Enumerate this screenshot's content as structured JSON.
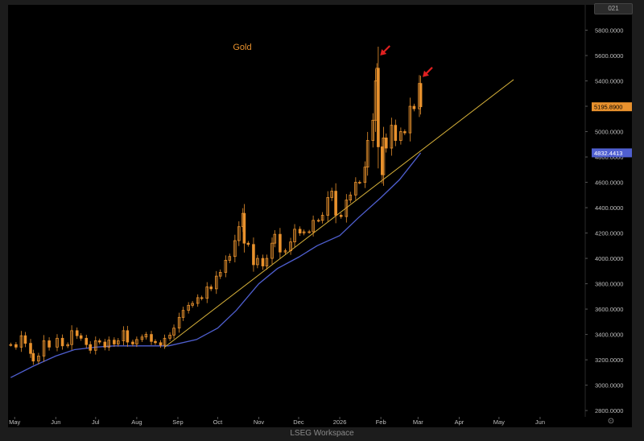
{
  "corner_label": "021",
  "settings_glyph": "⊙",
  "footer": "LSEG Workspace",
  "colors": {
    "background": "#000000",
    "frame": "#1c1c1c",
    "candle": "#e8912d",
    "moving_average": "#4f5fd0",
    "trendline": "#d8b23a",
    "arrow": "#e02020",
    "axis_text": "#bfbfbf",
    "price_label_bg": "#e8912d",
    "ma_label_bg": "#4f5fd0"
  },
  "chart_data": {
    "type": "line",
    "title": "Gold",
    "xlabel": "",
    "ylabel": "",
    "ylim": [
      2750,
      6000
    ],
    "y_ticks": [
      {
        "value": 2800,
        "label": "2800.0000"
      },
      {
        "value": 3000,
        "label": "3000.0000"
      },
      {
        "value": 3200,
        "label": "3200.0000"
      },
      {
        "value": 3400,
        "label": "3400.0000"
      },
      {
        "value": 3600,
        "label": "3600.0000"
      },
      {
        "value": 3800,
        "label": "3800.0000"
      },
      {
        "value": 4000,
        "label": "4000.0000"
      },
      {
        "value": 4200,
        "label": "4200.0000"
      },
      {
        "value": 4400,
        "label": "4400.0000"
      },
      {
        "value": 4600,
        "label": "4600.0000"
      },
      {
        "value": 4800,
        "label": "4800.0000"
      },
      {
        "value": 5000,
        "label": "5000.0000"
      },
      {
        "value": 5200,
        "label": "5200.0000"
      },
      {
        "value": 5400,
        "label": "5400.0000"
      },
      {
        "value": 5600,
        "label": "5600.0000"
      },
      {
        "value": 5800,
        "label": "5800.0000"
      }
    ],
    "x_ticks": [
      {
        "date": "2025-05-01",
        "label": "May"
      },
      {
        "date": "2025-06-01",
        "label": "Jun"
      },
      {
        "date": "2025-07-01",
        "label": "Jul"
      },
      {
        "date": "2025-08-01",
        "label": "Aug"
      },
      {
        "date": "2025-09-01",
        "label": "Sep"
      },
      {
        "date": "2025-10-01",
        "label": "Oct"
      },
      {
        "date": "2025-11-01",
        "label": "Nov"
      },
      {
        "date": "2025-12-01",
        "label": "Dec"
      },
      {
        "date": "2026-01-01",
        "label": "2026"
      },
      {
        "date": "2026-02-01",
        "label": "Feb"
      },
      {
        "date": "2026-03-01",
        "label": "Mar"
      },
      {
        "date": "2026-04-01",
        "label": "Apr"
      },
      {
        "date": "2026-05-01",
        "label": "May"
      },
      {
        "date": "2026-06-01",
        "label": "Jun"
      }
    ],
    "x_range": [
      "2025-04-26",
      "2026-07-05"
    ],
    "grid": false,
    "series": [
      {
        "role": "price",
        "style": "candlestick",
        "points": [
          {
            "date": "2025-04-28",
            "close": 3320
          },
          {
            "date": "2025-05-02",
            "close": 3300
          },
          {
            "date": "2025-05-06",
            "close": 3390
          },
          {
            "date": "2025-05-09",
            "close": 3330
          },
          {
            "date": "2025-05-13",
            "close": 3250
          },
          {
            "date": "2025-05-15",
            "close": 3190
          },
          {
            "date": "2025-05-19",
            "close": 3230
          },
          {
            "date": "2025-05-23",
            "close": 3350
          },
          {
            "date": "2025-05-27",
            "close": 3300
          },
          {
            "date": "2025-06-02",
            "close": 3370
          },
          {
            "date": "2025-06-06",
            "close": 3310
          },
          {
            "date": "2025-06-10",
            "close": 3320
          },
          {
            "date": "2025-06-13",
            "close": 3430
          },
          {
            "date": "2025-06-17",
            "close": 3390
          },
          {
            "date": "2025-06-20",
            "close": 3370
          },
          {
            "date": "2025-06-24",
            "close": 3320
          },
          {
            "date": "2025-06-27",
            "close": 3275
          },
          {
            "date": "2025-07-01",
            "close": 3350
          },
          {
            "date": "2025-07-04",
            "close": 3340
          },
          {
            "date": "2025-07-08",
            "close": 3300
          },
          {
            "date": "2025-07-11",
            "close": 3355
          },
          {
            "date": "2025-07-15",
            "close": 3325
          },
          {
            "date": "2025-07-18",
            "close": 3350
          },
          {
            "date": "2025-07-22",
            "close": 3430
          },
          {
            "date": "2025-07-25",
            "close": 3340
          },
          {
            "date": "2025-07-29",
            "close": 3325
          },
          {
            "date": "2025-08-01",
            "close": 3360
          },
          {
            "date": "2025-08-05",
            "close": 3380
          },
          {
            "date": "2025-08-08",
            "close": 3400
          },
          {
            "date": "2025-08-12",
            "close": 3345
          },
          {
            "date": "2025-08-15",
            "close": 3335
          },
          {
            "date": "2025-08-19",
            "close": 3315
          },
          {
            "date": "2025-08-22",
            "close": 3370
          },
          {
            "date": "2025-08-26",
            "close": 3395
          },
          {
            "date": "2025-08-29",
            "close": 3450
          },
          {
            "date": "2025-09-02",
            "close": 3535
          },
          {
            "date": "2025-09-05",
            "close": 3590
          },
          {
            "date": "2025-09-09",
            "close": 3630
          },
          {
            "date": "2025-09-12",
            "close": 3645
          },
          {
            "date": "2025-09-16",
            "close": 3690
          },
          {
            "date": "2025-09-19",
            "close": 3685
          },
          {
            "date": "2025-09-23",
            "close": 3775
          },
          {
            "date": "2025-09-26",
            "close": 3760
          },
          {
            "date": "2025-09-30",
            "close": 3860
          },
          {
            "date": "2025-10-03",
            "close": 3890
          },
          {
            "date": "2025-10-07",
            "close": 3985
          },
          {
            "date": "2025-10-10",
            "close": 4015
          },
          {
            "date": "2025-10-14",
            "close": 4140
          },
          {
            "date": "2025-10-17",
            "close": 4250
          },
          {
            "date": "2025-10-20",
            "close": 4355
          },
          {
            "date": "2025-10-21",
            "close": 4120
          },
          {
            "date": "2025-10-24",
            "close": 4110
          },
          {
            "date": "2025-10-28",
            "close": 3950
          },
          {
            "date": "2025-10-31",
            "close": 4000
          },
          {
            "date": "2025-11-04",
            "close": 3940
          },
          {
            "date": "2025-11-07",
            "close": 4000
          },
          {
            "date": "2025-11-11",
            "close": 4120
          },
          {
            "date": "2025-11-13",
            "close": 4190
          },
          {
            "date": "2025-11-17",
            "close": 4050
          },
          {
            "date": "2025-11-21",
            "close": 4060
          },
          {
            "date": "2025-11-25",
            "close": 4130
          },
          {
            "date": "2025-11-28",
            "close": 4230
          },
          {
            "date": "2025-12-02",
            "close": 4200
          },
          {
            "date": "2025-12-05",
            "close": 4210
          },
          {
            "date": "2025-12-09",
            "close": 4210
          },
          {
            "date": "2025-12-12",
            "close": 4300
          },
          {
            "date": "2025-12-16",
            "close": 4300
          },
          {
            "date": "2025-12-19",
            "close": 4340
          },
          {
            "date": "2025-12-23",
            "close": 4480
          },
          {
            "date": "2025-12-26",
            "close": 4530
          },
          {
            "date": "2025-12-29",
            "close": 4340
          },
          {
            "date": "2026-01-02",
            "close": 4330
          },
          {
            "date": "2026-01-06",
            "close": 4460
          },
          {
            "date": "2026-01-09",
            "close": 4500
          },
          {
            "date": "2026-01-13",
            "close": 4600
          },
          {
            "date": "2026-01-16",
            "close": 4600
          },
          {
            "date": "2026-01-20",
            "close": 4720
          },
          {
            "date": "2026-01-22",
            "close": 4930
          },
          {
            "date": "2026-01-26",
            "close": 5090
          },
          {
            "date": "2026-01-28",
            "close": 5400
          },
          {
            "date": "2026-01-29",
            "close": 5500
          },
          {
            "date": "2026-01-30",
            "close": 4880
          },
          {
            "date": "2026-02-02",
            "close": 4660
          },
          {
            "date": "2026-02-03",
            "close": 4950
          },
          {
            "date": "2026-02-05",
            "close": 4870
          },
          {
            "date": "2026-02-09",
            "close": 5050
          },
          {
            "date": "2026-02-12",
            "close": 4930
          },
          {
            "date": "2026-02-16",
            "close": 5000
          },
          {
            "date": "2026-02-19",
            "close": 4990
          },
          {
            "date": "2026-02-23",
            "close": 5200
          },
          {
            "date": "2026-02-26",
            "close": 5180
          },
          {
            "date": "2026-03-02",
            "close": 5380
          },
          {
            "date": "2026-03-03",
            "close": 5196
          }
        ]
      },
      {
        "role": "moving-average",
        "style": "line",
        "points": [
          {
            "date": "2025-04-28",
            "value": 3060
          },
          {
            "date": "2025-05-15",
            "value": 3150
          },
          {
            "date": "2025-06-01",
            "value": 3230
          },
          {
            "date": "2025-06-15",
            "value": 3280
          },
          {
            "date": "2025-07-01",
            "value": 3300
          },
          {
            "date": "2025-07-15",
            "value": 3310
          },
          {
            "date": "2025-08-01",
            "value": 3310
          },
          {
            "date": "2025-08-25",
            "value": 3310
          },
          {
            "date": "2025-09-15",
            "value": 3360
          },
          {
            "date": "2025-10-01",
            "value": 3450
          },
          {
            "date": "2025-10-15",
            "value": 3590
          },
          {
            "date": "2025-11-01",
            "value": 3800
          },
          {
            "date": "2025-11-15",
            "value": 3920
          },
          {
            "date": "2025-12-01",
            "value": 4010
          },
          {
            "date": "2025-12-15",
            "value": 4100
          },
          {
            "date": "2026-01-01",
            "value": 4180
          },
          {
            "date": "2026-01-15",
            "value": 4320
          },
          {
            "date": "2026-02-01",
            "value": 4480
          },
          {
            "date": "2026-02-15",
            "value": 4620
          },
          {
            "date": "2026-03-03",
            "value": 4832
          }
        ]
      },
      {
        "role": "trendline",
        "style": "line",
        "points": [
          {
            "date": "2025-08-22",
            "value": 3300
          },
          {
            "date": "2026-05-12",
            "value": 5410
          }
        ]
      }
    ],
    "price_labels": [
      {
        "value": 5195.89,
        "label": "5195.8900",
        "role": "last-price"
      },
      {
        "value": 4832.4413,
        "label": "4832.4413",
        "role": "moving-average"
      }
    ],
    "annotations": [
      {
        "type": "arrow",
        "date": "2026-01-29",
        "value": 5600,
        "direction": "down-left"
      },
      {
        "type": "arrow",
        "date": "2026-03-02",
        "value": 5430,
        "direction": "down-left"
      }
    ]
  }
}
